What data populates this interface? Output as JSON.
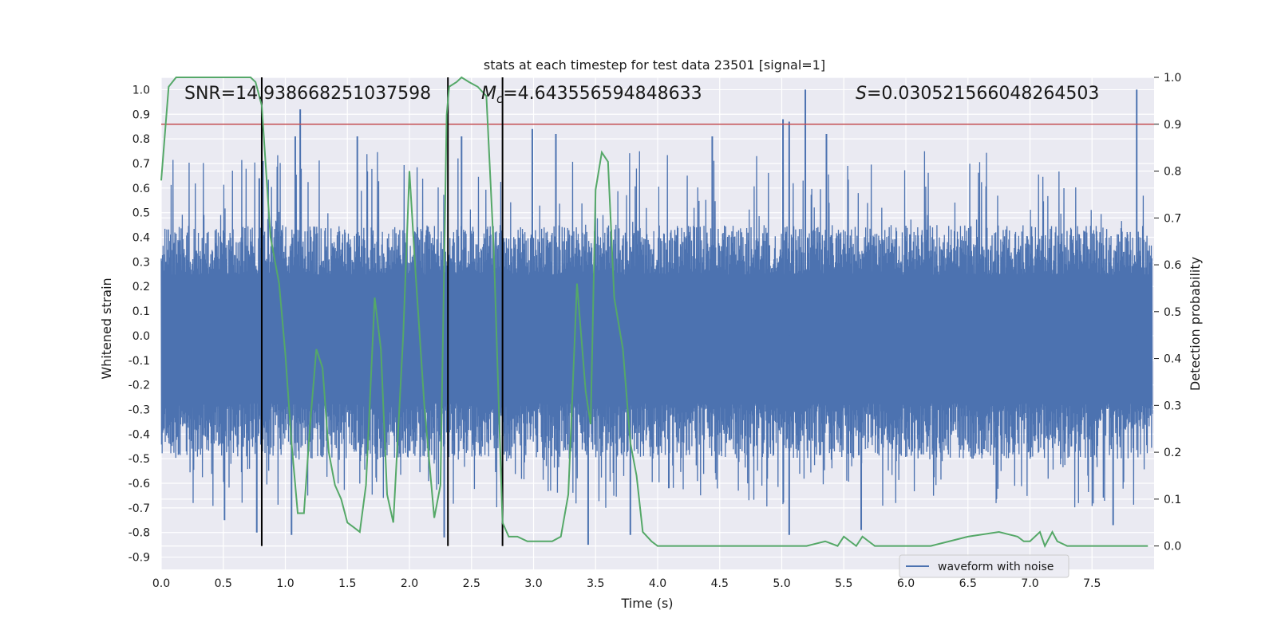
{
  "chart_data": {
    "type": "line",
    "title": "stats at each timestep for test data 23501 [signal=1]",
    "xlabel": "Time (s)",
    "ylabel": "Whitened strain",
    "y2label": "Detection probability",
    "xlim": [
      0.0,
      8.0
    ],
    "ylim": [
      -0.95,
      1.05
    ],
    "y2lim": [
      -0.05,
      1.0
    ],
    "x_ticks": [
      "0.0",
      "0.5",
      "1.0",
      "1.5",
      "2.0",
      "2.5",
      "3.0",
      "3.5",
      "4.0",
      "4.5",
      "5.0",
      "5.5",
      "6.0",
      "6.5",
      "7.0",
      "7.5"
    ],
    "y_ticks": [
      "-0.9",
      "-0.8",
      "-0.7",
      "-0.6",
      "-0.5",
      "-0.4",
      "-0.3",
      "-0.2",
      "-0.1",
      "0.0",
      "0.1",
      "0.2",
      "0.3",
      "0.4",
      "0.5",
      "0.6",
      "0.7",
      "0.8",
      "0.9",
      "1.0"
    ],
    "y2_ticks": [
      "0.0",
      "0.1",
      "0.2",
      "0.3",
      "0.4",
      "0.5",
      "0.6",
      "0.7",
      "0.8",
      "0.9",
      "1.0"
    ],
    "annotations": {
      "snr": "SNR=14.938668251037598",
      "mc": "=4.643556594848633",
      "mc_symbol": "M",
      "mc_subscript": "c",
      "s": "=0.030521566048264503",
      "s_symbol": "S"
    },
    "legend": {
      "label": "waveform with noise",
      "location": "lower-right"
    },
    "threshold": {
      "axis": "y2",
      "value": 0.9,
      "color": "#c44e52"
    },
    "event_lines": [
      0.81,
      2.31,
      2.75
    ],
    "series": [
      {
        "name": "waveform with noise",
        "axis": "y",
        "color": "#4c72b0",
        "style": "dense-noise",
        "envelope_upper": 0.45,
        "envelope_lower": -0.5,
        "peaks": [
          {
            "x": 0.79,
            "y": 0.64
          },
          {
            "x": 0.82,
            "y": 0.71
          },
          {
            "x": 1.08,
            "y": 0.81
          },
          {
            "x": 1.12,
            "y": 0.92
          },
          {
            "x": 1.58,
            "y": 0.81
          },
          {
            "x": 2.42,
            "y": 0.81
          },
          {
            "x": 2.99,
            "y": 0.84
          },
          {
            "x": 3.18,
            "y": 0.82
          },
          {
            "x": 4.44,
            "y": 0.81
          },
          {
            "x": 5.01,
            "y": 0.88
          },
          {
            "x": 5.06,
            "y": 0.87
          },
          {
            "x": 5.19,
            "y": 1.0
          },
          {
            "x": 5.36,
            "y": 0.82
          },
          {
            "x": 7.86,
            "y": 1.0
          }
        ],
        "troughs": [
          {
            "x": 0.51,
            "y": -0.75
          },
          {
            "x": 0.77,
            "y": -0.8
          },
          {
            "x": 1.05,
            "y": -0.81
          },
          {
            "x": 2.28,
            "y": -0.82
          },
          {
            "x": 3.44,
            "y": -0.85
          },
          {
            "x": 3.78,
            "y": -0.81
          },
          {
            "x": 4.09,
            "y": -0.62
          },
          {
            "x": 5.06,
            "y": -0.81
          },
          {
            "x": 5.64,
            "y": -0.79
          },
          {
            "x": 7.67,
            "y": -0.77
          }
        ]
      },
      {
        "name": "detection probability",
        "axis": "y2",
        "color": "#55a868",
        "x": [
          0.0,
          0.06,
          0.12,
          0.3,
          0.6,
          0.72,
          0.76,
          0.81,
          0.88,
          0.95,
          1.0,
          1.05,
          1.1,
          1.15,
          1.2,
          1.25,
          1.3,
          1.35,
          1.4,
          1.45,
          1.5,
          1.55,
          1.6,
          1.65,
          1.72,
          1.77,
          1.82,
          1.87,
          1.95,
          2.0,
          2.05,
          2.12,
          2.2,
          2.25,
          2.3,
          2.32,
          2.38,
          2.42,
          2.48,
          2.55,
          2.62,
          2.68,
          2.75,
          2.8,
          2.87,
          2.95,
          3.02,
          3.08,
          3.15,
          3.22,
          3.28,
          3.35,
          3.42,
          3.46,
          3.5,
          3.55,
          3.6,
          3.65,
          3.72,
          3.78,
          3.83,
          3.88,
          3.95,
          4.0,
          4.08,
          4.13,
          4.18,
          4.25,
          4.35,
          4.5,
          4.6,
          4.8,
          5.0,
          5.1,
          5.2,
          5.35,
          5.45,
          5.5,
          5.55,
          5.6,
          5.65,
          5.7,
          5.75,
          5.8,
          5.85,
          6.0,
          6.2,
          6.5,
          6.75,
          6.9,
          6.95,
          7.0,
          7.08,
          7.12,
          7.18,
          7.22,
          7.3,
          7.5,
          7.7,
          7.95
        ],
        "y": [
          0.78,
          0.98,
          1.0,
          1.0,
          1.0,
          1.0,
          0.99,
          0.94,
          0.66,
          0.56,
          0.41,
          0.22,
          0.07,
          0.07,
          0.26,
          0.42,
          0.38,
          0.2,
          0.13,
          0.1,
          0.05,
          0.04,
          0.03,
          0.13,
          0.53,
          0.42,
          0.11,
          0.05,
          0.45,
          0.8,
          0.58,
          0.3,
          0.06,
          0.13,
          0.92,
          0.98,
          0.99,
          1.0,
          0.99,
          0.98,
          0.96,
          0.63,
          0.05,
          0.02,
          0.02,
          0.01,
          0.01,
          0.01,
          0.01,
          0.02,
          0.11,
          0.56,
          0.33,
          0.26,
          0.76,
          0.84,
          0.82,
          0.53,
          0.42,
          0.22,
          0.15,
          0.03,
          0.01,
          0.0,
          0.0,
          0.0,
          0.0,
          0.0,
          0.0,
          0.0,
          0.0,
          0.0,
          0.0,
          0.0,
          0.0,
          0.01,
          0.0,
          0.02,
          0.01,
          0.0,
          0.02,
          0.01,
          0.0,
          0.0,
          0.0,
          0.0,
          0.0,
          0.02,
          0.03,
          0.02,
          0.01,
          0.01,
          0.03,
          0.0,
          0.03,
          0.01,
          0.0,
          0.0,
          0.0,
          0.0
        ]
      }
    ]
  }
}
